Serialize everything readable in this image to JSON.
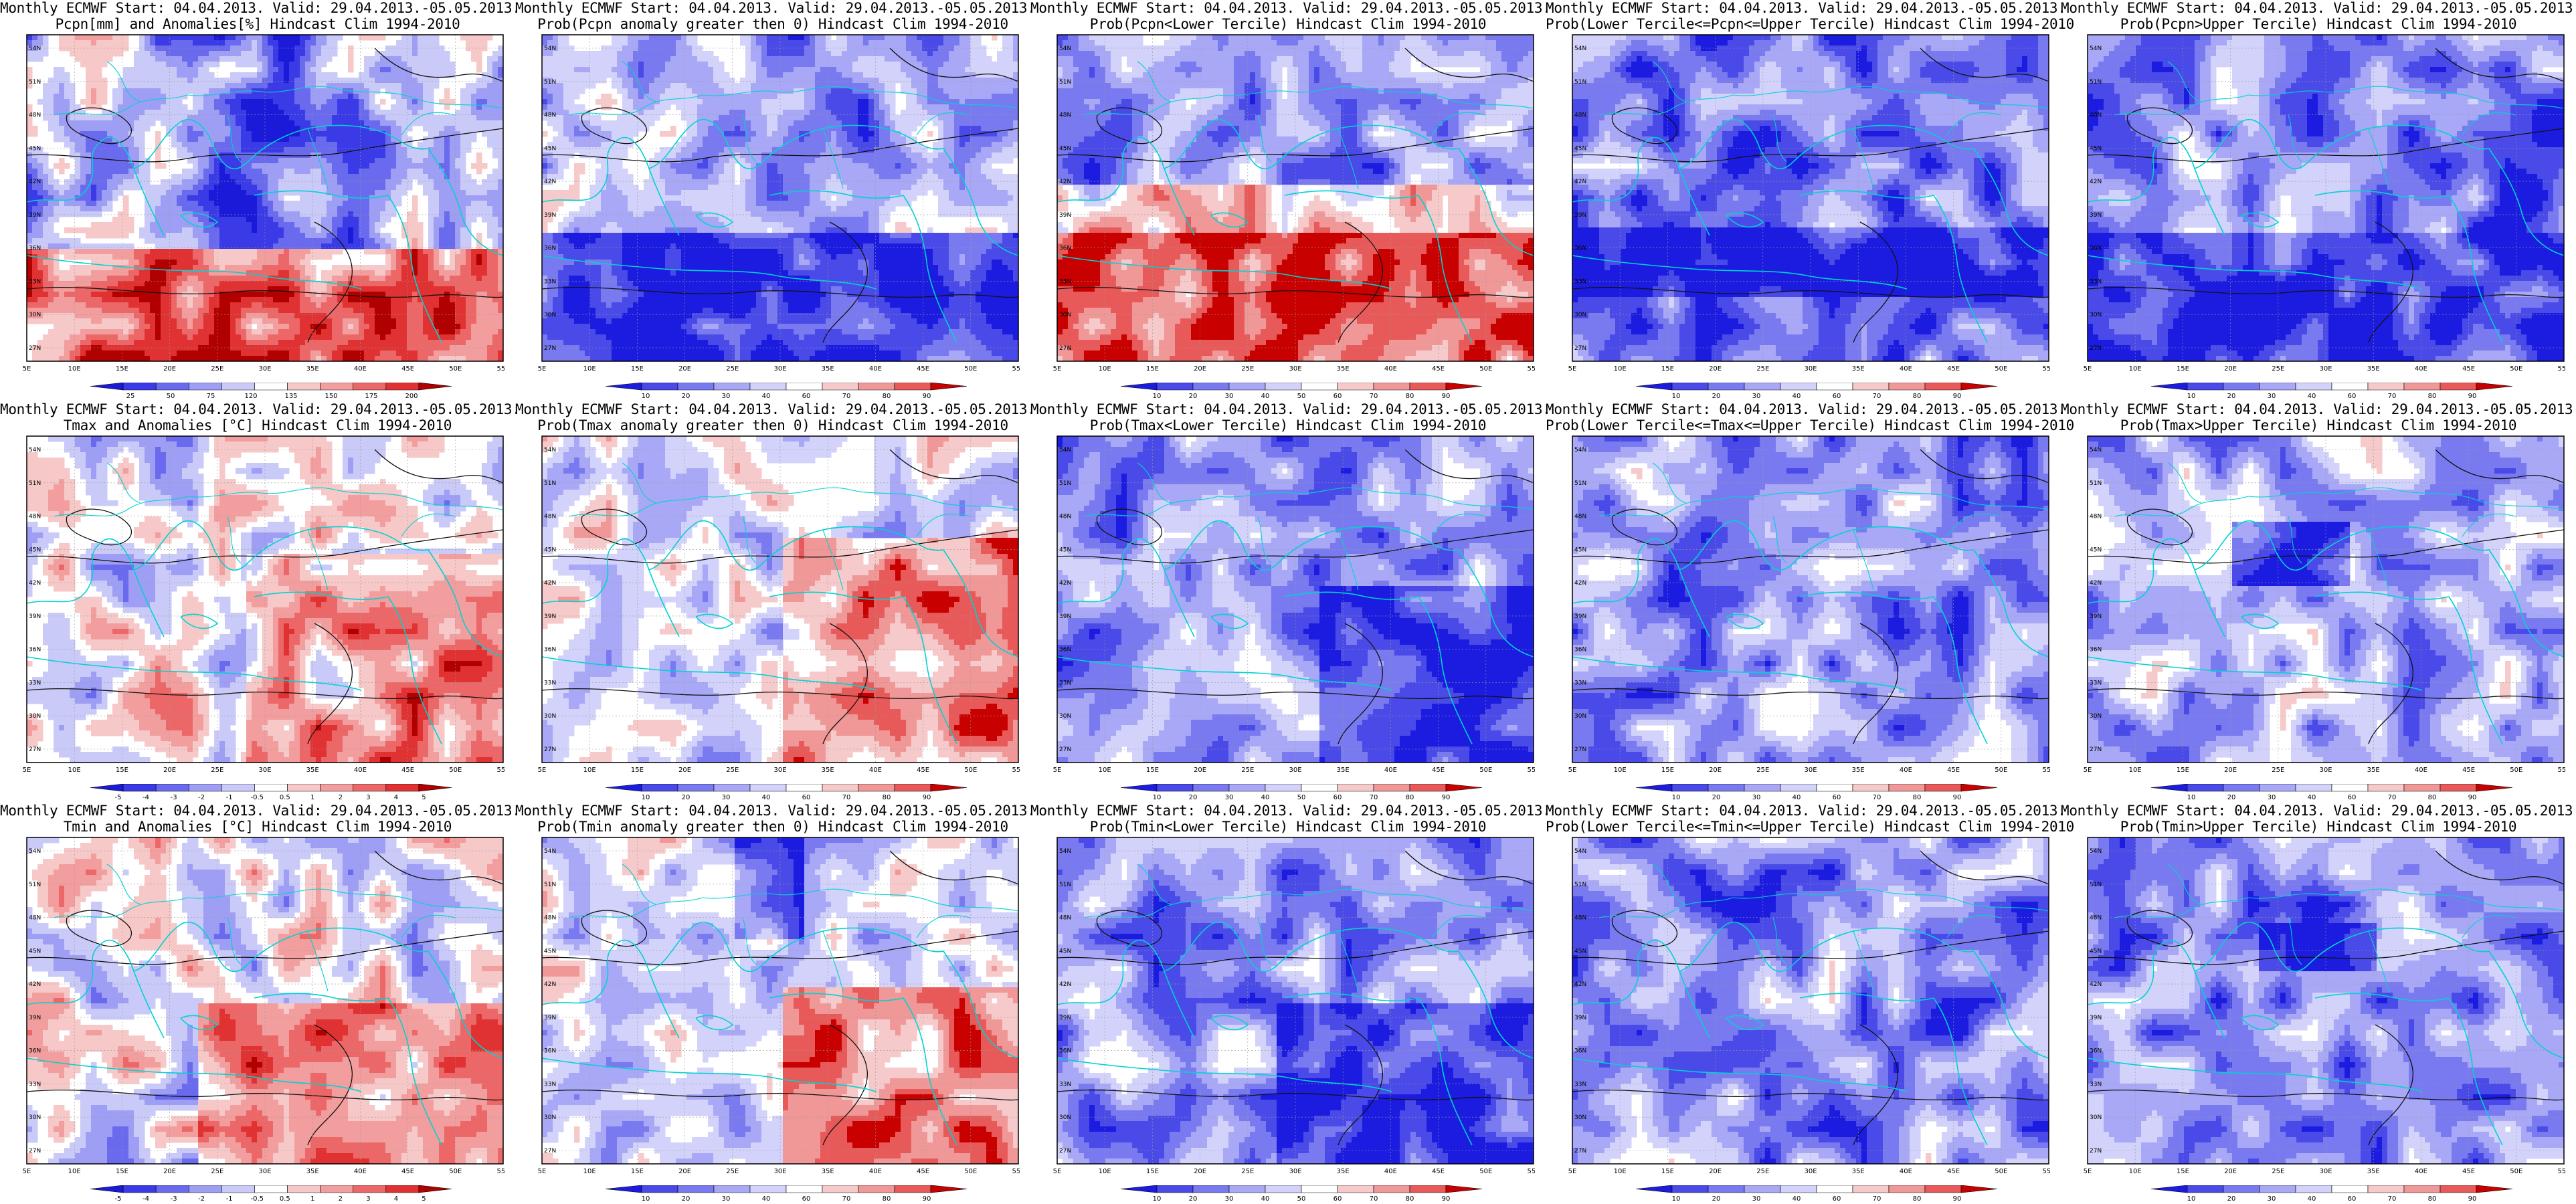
{
  "palettes": {
    "diverging": [
      "#1a1ad8",
      "#3a3ae6",
      "#6a6aee",
      "#9e9ef4",
      "#cacaf8",
      "#ffffff",
      "#f7c8c8",
      "#f29e9e",
      "#ec6868",
      "#e03232",
      "#b00000"
    ],
    "prob": [
      "#1c1ce0",
      "#4a4ae8",
      "#7a7af0",
      "#a8a8f6",
      "#d2d2fa",
      "#ffffff",
      "#f6caca",
      "#f09898",
      "#e85a5a",
      "#c80000"
    ],
    "ocean": "#00d2d2",
    "contour": "#111111"
  },
  "axes": {
    "lon": [
      "5E",
      "10E",
      "15E",
      "20E",
      "25E",
      "30E",
      "35E",
      "40E",
      "45E",
      "50E",
      "55E"
    ],
    "lat": [
      "54N",
      "51N",
      "48N",
      "45N",
      "42N",
      "39N",
      "36N",
      "33N",
      "30N",
      "27N"
    ]
  },
  "panels": [
    {
      "id": "p-r0c0",
      "title1": "Monthly ECMWF Start: 04.04.2013. Valid: 29.04.2013.-05.05.2013.",
      "title2": "Pcpn[mm] and Anomalies[%]",
      "title3": "Hindcast Clim 1994-2010",
      "field": "precip-anom",
      "colorbar": {
        "labels": [
          "25",
          "50",
          "75",
          "120",
          "135",
          "150",
          "175",
          "200"
        ],
        "palette": "diverging"
      }
    },
    {
      "id": "p-r0c1",
      "title1": "Monthly ECMWF Start: 04.04.2013. Valid: 29.04.2013.-05.05.2013.",
      "title2": "Prob(Pcpn anomaly greater then 0)",
      "title3": "Hindcast Clim 1994-2010",
      "field": "precip-prob0",
      "colorbar": {
        "labels": [
          "10",
          "20",
          "30",
          "40",
          "60",
          "70",
          "80",
          "90"
        ],
        "palette": "prob"
      }
    },
    {
      "id": "p-r0c2",
      "title1": "Monthly ECMWF Start: 04.04.2013. Valid: 29.04.2013.-05.05.2013.",
      "title2": "Prob(Pcpn<Lower Tercile)",
      "title3": "Hindcast Clim 1994-2010",
      "field": "precip-lower",
      "colorbar": {
        "labels": [
          "10",
          "20",
          "30",
          "40",
          "50",
          "60",
          "70",
          "80",
          "90"
        ],
        "palette": "prob"
      }
    },
    {
      "id": "p-r0c3",
      "title1": "Monthly ECMWF Start: 04.04.2013. Valid: 29.04.2013.-05.05.2013.",
      "title2": "Prob(Lower Tercile<=Pcpn<=Upper Tercile)",
      "title3": "Hindcast Clim 1994-2010",
      "field": "precip-middle",
      "colorbar": {
        "labels": [
          "10",
          "20",
          "30",
          "40",
          "60",
          "70",
          "80",
          "90"
        ],
        "palette": "prob"
      }
    },
    {
      "id": "p-r0c4",
      "title1": "Monthly ECMWF Start: 04.04.2013. Valid: 29.04.2013.-05.05.2013.",
      "title2": "Prob(Pcpn>Upper Tercile)",
      "title3": "Hindcast Clim 1994-2010",
      "field": "precip-upper",
      "colorbar": {
        "labels": [
          "10",
          "20",
          "30",
          "40",
          "60",
          "70",
          "80",
          "90"
        ],
        "palette": "prob"
      }
    },
    {
      "id": "p-r1c0",
      "title1": "Monthly ECMWF Start: 04.04.2013. Valid: 29.04.2013.-05.05.2013.",
      "title2": "Tmax and Anomalies [°C]",
      "title3": "Hindcast Clim 1994-2010",
      "field": "tmax-anom",
      "colorbar": {
        "labels": [
          "-5",
          "-4",
          "-3",
          "-2",
          "-1",
          "-0.5",
          "0.5",
          "1",
          "2",
          "3",
          "4",
          "5"
        ],
        "palette": "diverging"
      }
    },
    {
      "id": "p-r1c1",
      "title1": "Monthly ECMWF Start: 04.04.2013. Valid: 29.04.2013.-05.05.2013.",
      "title2": "Prob(Tmax anomaly greater then 0)",
      "title3": "Hindcast Clim 1994-2010",
      "field": "tmax-prob0",
      "colorbar": {
        "labels": [
          "10",
          "20",
          "30",
          "40",
          "60",
          "70",
          "80",
          "90"
        ],
        "palette": "prob"
      }
    },
    {
      "id": "p-r1c2",
      "title1": "Monthly ECMWF Start: 04.04.2013. Valid: 29.04.2013.-05.05.2013.",
      "title2": "Prob(Tmax<Lower Tercile)",
      "title3": "Hindcast Clim 1994-2010",
      "field": "tmax-lower",
      "colorbar": {
        "labels": [
          "10",
          "20",
          "30",
          "40",
          "50",
          "60",
          "70",
          "80",
          "90"
        ],
        "palette": "prob"
      }
    },
    {
      "id": "p-r1c3",
      "title1": "Monthly ECMWF Start: 04.04.2013. Valid: 29.04.2013.-05.05.2013.",
      "title2": "Prob(Lower Tercile<=Tmax<=Upper Tercile)",
      "title3": "Hindcast Clim 1994-2010",
      "field": "tmax-middle",
      "colorbar": {
        "labels": [
          "10",
          "20",
          "30",
          "40",
          "60",
          "70",
          "80",
          "90"
        ],
        "palette": "prob"
      }
    },
    {
      "id": "p-r1c4",
      "title1": "Monthly ECMWF Start: 04.04.2013. Valid: 29.04.2013.-05.05.2013.",
      "title2": "Prob(Tmax>Upper Tercile)",
      "title3": "Hindcast Clim 1994-2010",
      "field": "tmax-upper",
      "colorbar": {
        "labels": [
          "10",
          "20",
          "30",
          "40",
          "60",
          "70",
          "80",
          "90"
        ],
        "palette": "prob"
      }
    },
    {
      "id": "p-r2c0",
      "title1": "Monthly ECMWF Start: 04.04.2013. Valid: 29.04.2013.-05.05.2013.",
      "title2": "Tmin and Anomalies [°C]",
      "title3": "Hindcast Clim 1994-2010",
      "field": "tmin-anom",
      "colorbar": {
        "labels": [
          "-5",
          "-4",
          "-3",
          "-2",
          "-1",
          "-0.5",
          "0.5",
          "1",
          "2",
          "3",
          "4",
          "5"
        ],
        "palette": "diverging"
      }
    },
    {
      "id": "p-r2c1",
      "title1": "Monthly ECMWF Start: 04.04.2013. Valid: 29.04.2013.-05.05.2013.",
      "title2": "Prob(Tmin anomaly greater then 0)",
      "title3": "Hindcast Clim 1994-2010",
      "field": "tmin-prob0",
      "colorbar": {
        "labels": [
          "10",
          "20",
          "30",
          "40",
          "60",
          "70",
          "80",
          "90"
        ],
        "palette": "prob"
      }
    },
    {
      "id": "p-r2c2",
      "title1": "Monthly ECMWF Start: 04.04.2013. Valid: 29.04.2013.-05.05.2013.",
      "title2": "Prob(Tmin<Lower Tercile)",
      "title3": "Hindcast Clim 1994-2010",
      "field": "tmin-lower",
      "colorbar": {
        "labels": [
          "10",
          "20",
          "30",
          "40",
          "50",
          "60",
          "70",
          "80",
          "90"
        ],
        "palette": "prob"
      }
    },
    {
      "id": "p-r2c3",
      "title1": "Monthly ECMWF Start: 04.04.2013. Valid: 29.04.2013.-05.05.2013.",
      "title2": "Prob(Lower Tercile<=Tmin<=Upper Tercile)",
      "title3": "Hindcast Clim 1994-2010",
      "field": "tmin-middle",
      "colorbar": {
        "labels": [
          "10",
          "20",
          "30",
          "40",
          "60",
          "70",
          "80",
          "90"
        ],
        "palette": "prob"
      }
    },
    {
      "id": "p-r2c4",
      "title1": "Monthly ECMWF Start: 04.04.2013. Valid: 29.04.2013.-05.05.2013.",
      "title2": "Prob(Tmin>Upper Tercile)",
      "title3": "Hindcast Clim 1994-2010",
      "field": "tmin-upper",
      "colorbar": {
        "labels": [
          "10",
          "20",
          "30",
          "40",
          "60",
          "70",
          "80",
          "90"
        ],
        "palette": "prob"
      }
    }
  ]
}
